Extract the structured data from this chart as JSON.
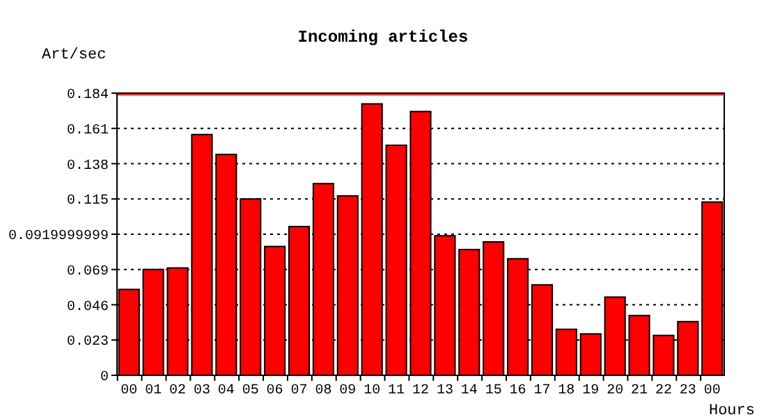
{
  "chart_data": {
    "type": "bar",
    "title": "Incoming articles",
    "ylabel": "Art/sec",
    "xlabel": "Hours",
    "categories": [
      "00",
      "01",
      "02",
      "03",
      "04",
      "05",
      "06",
      "07",
      "08",
      "09",
      "10",
      "11",
      "12",
      "13",
      "14",
      "15",
      "16",
      "17",
      "18",
      "19",
      "20",
      "21",
      "22",
      "23",
      "00"
    ],
    "series": [
      {
        "color": "#ff0000",
        "values": [
          0.056,
          0.069,
          0.07,
          0.157,
          0.144,
          0.115,
          0.084,
          0.097,
          0.125,
          0.117,
          0.177,
          0.15,
          0.172,
          0.091,
          0.082,
          0.087,
          0.076,
          0.059,
          0.03,
          0.027,
          0.051,
          0.039,
          0.026,
          0.035,
          0.113
        ]
      }
    ],
    "ylim": [
      0,
      0.184
    ],
    "yticks": [
      0,
      0.023,
      0.046,
      0.069,
      0.0919999999,
      0.115,
      0.138,
      0.161,
      0.184
    ],
    "grid": "y",
    "ref_lines": [
      {
        "axis": "y",
        "value": 0.183,
        "color": "#ff0000"
      }
    ]
  }
}
